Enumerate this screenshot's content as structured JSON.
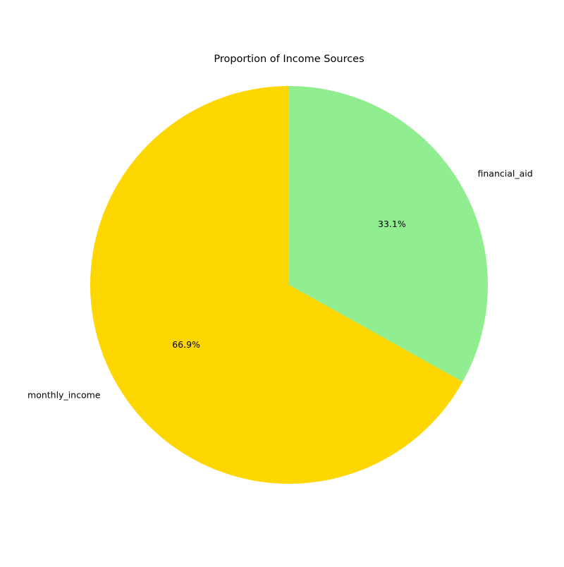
{
  "chart_data": {
    "type": "pie",
    "title": "Proportion of Income Sources",
    "slices": [
      {
        "label": "monthly_income",
        "value": 66.9,
        "pct_label": "66.9%",
        "color": "#FFD700"
      },
      {
        "label": "financial_aid",
        "value": 33.1,
        "pct_label": "33.1%",
        "color": "#90EE90"
      }
    ],
    "start_angle_deg": 90,
    "direction": "counterclockwise"
  }
}
